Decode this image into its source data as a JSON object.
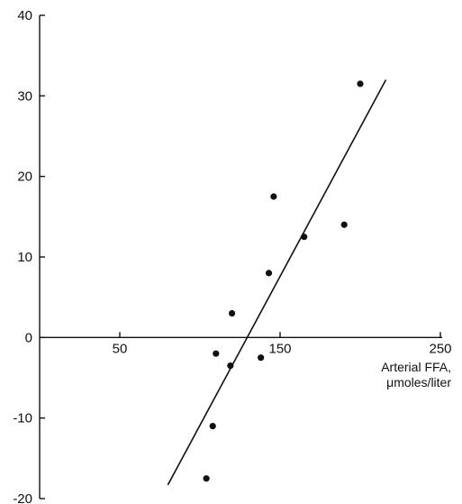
{
  "chart_data": {
    "type": "scatter",
    "title": "",
    "xlabel_lines": [
      "Arterial FFA,",
      "μmoles/liter"
    ],
    "ylabel": "",
    "xlim": [
      0,
      250
    ],
    "ylim": [
      -20,
      40
    ],
    "x_ticks": [
      {
        "value": 50,
        "label": "50"
      },
      {
        "value": 150,
        "label": "150"
      },
      {
        "value": 250,
        "label": "250"
      }
    ],
    "y_ticks": [
      {
        "value": 40,
        "label": "40"
      },
      {
        "value": 30,
        "label": "30"
      },
      {
        "value": 20,
        "label": "20"
      },
      {
        "value": 10,
        "label": "10"
      },
      {
        "value": 0,
        "label": "0"
      },
      {
        "value": -10,
        "label": "-10"
      },
      {
        "value": -20,
        "label": "-20"
      }
    ],
    "grid": false,
    "points": [
      {
        "x": 104,
        "y": -17.5
      },
      {
        "x": 108,
        "y": -11
      },
      {
        "x": 110,
        "y": -2
      },
      {
        "x": 119,
        "y": -3.5
      },
      {
        "x": 120,
        "y": 3
      },
      {
        "x": 138,
        "y": -2.5
      },
      {
        "x": 143,
        "y": 8
      },
      {
        "x": 146,
        "y": 17.5
      },
      {
        "x": 165,
        "y": 12.5
      },
      {
        "x": 190,
        "y": 14
      },
      {
        "x": 200,
        "y": 31.5
      }
    ],
    "fit_line": {
      "x": [
        80,
        216
      ],
      "y": [
        -18.3,
        32
      ]
    }
  }
}
